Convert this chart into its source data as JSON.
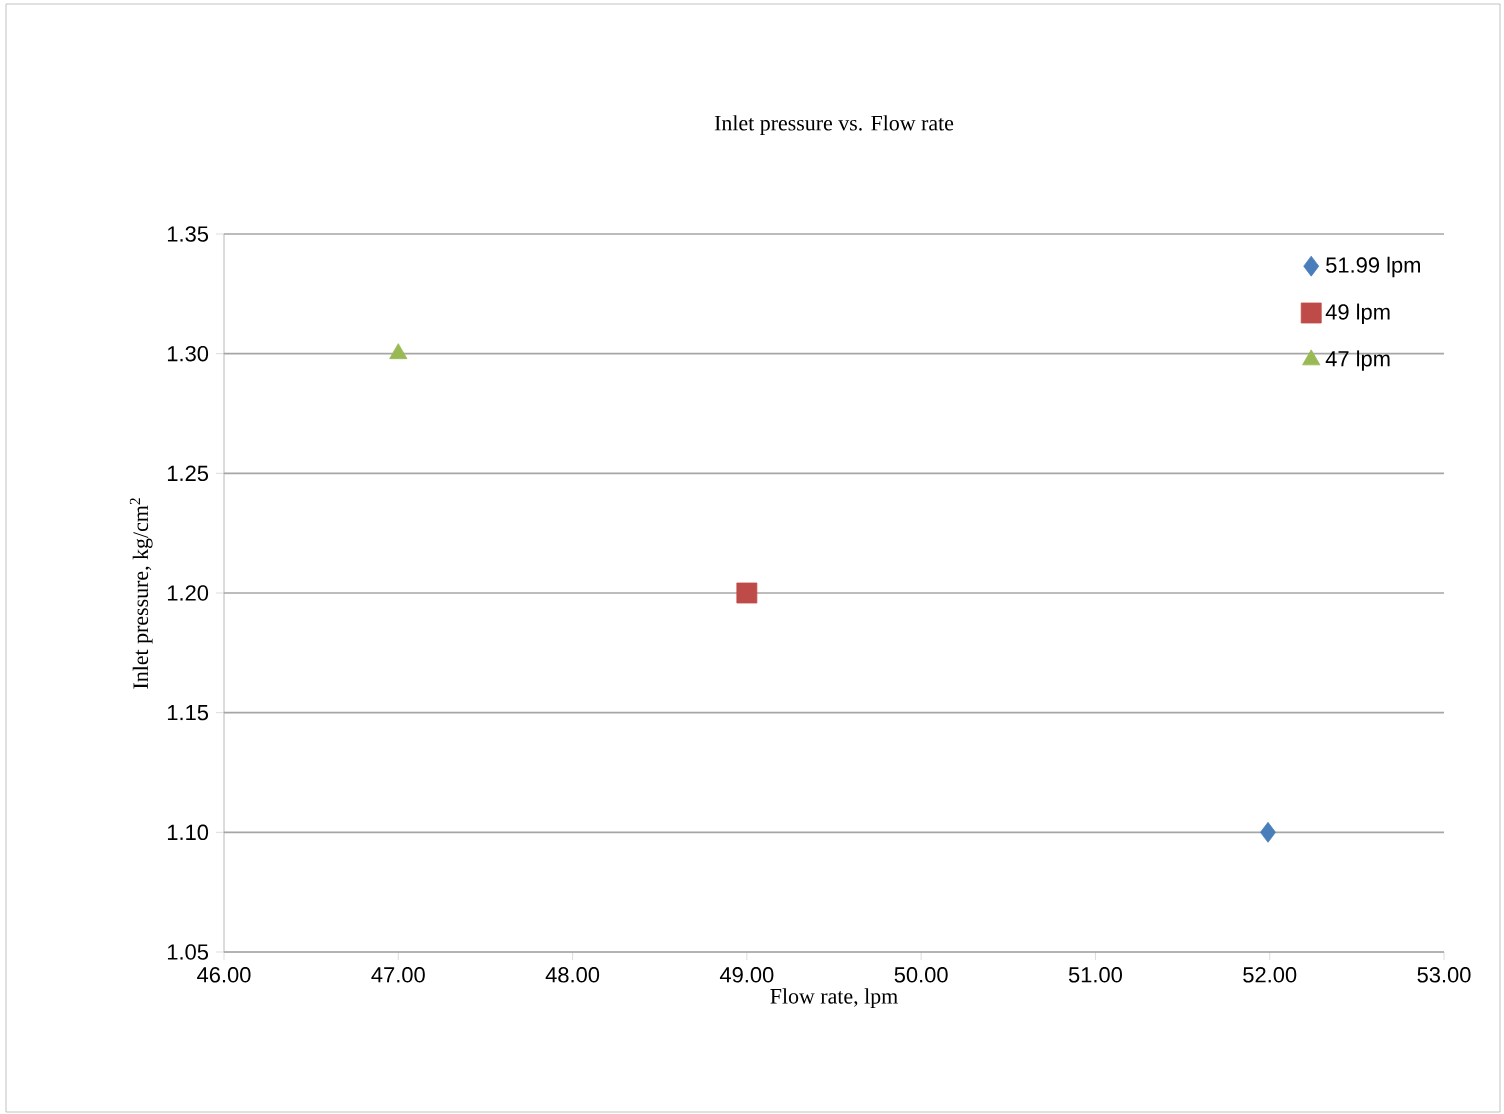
{
  "chart_data": {
    "type": "scatter",
    "title": "Inlet pressure vs. Flow rate",
    "xlabel": "Flow rate, lpm",
    "ylabel": "Inlet pressure, kg/cm$^{2}$",
    "series": [
      {
        "name": "51.99 lpm",
        "color": "#4a7ebb",
        "marker": "diamond",
        "x": [
          51.99
        ],
        "values": [
          1.1
        ]
      },
      {
        "name": "49 lpm",
        "color": "#be4b48",
        "marker": "square",
        "x": [
          49
        ],
        "values": [
          1.2
        ]
      },
      {
        "name": "47 lpm",
        "color": "#98b954",
        "marker": "triangle",
        "x": [
          47
        ],
        "values": [
          1.3
        ]
      }
    ],
    "xlim": [
      46,
      53
    ],
    "ylim": [
      1.05,
      1.35
    ],
    "xticks": [
      {
        "value": 46,
        "label": "46.00"
      },
      {
        "value": 47,
        "label": "47.00"
      },
      {
        "value": 48,
        "label": "48.00"
      },
      {
        "value": 49,
        "label": "49.00"
      },
      {
        "value": 50,
        "label": "50.00"
      },
      {
        "value": 51,
        "label": "51.00"
      },
      {
        "value": 52,
        "label": "52.00"
      },
      {
        "value": 53,
        "label": "53.00"
      }
    ],
    "yticks": [
      {
        "value": 1.05,
        "label": "1.05"
      },
      {
        "value": 1.1,
        "label": "1.10"
      },
      {
        "value": 1.15,
        "label": "1.15"
      },
      {
        "value": 1.2,
        "label": "1.20"
      },
      {
        "value": 1.25,
        "label": "1.25"
      },
      {
        "value": 1.3,
        "label": "1.30"
      },
      {
        "value": 1.35,
        "label": "1.35"
      }
    ],
    "grid": "y",
    "legend": "top right"
  }
}
